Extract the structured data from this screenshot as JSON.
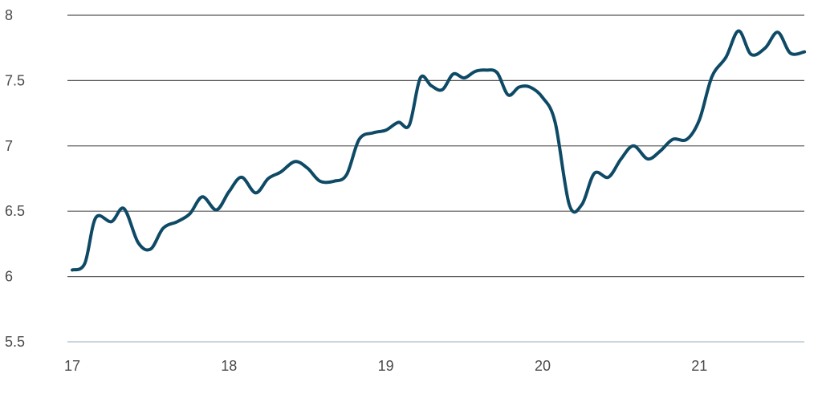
{
  "chart_data": {
    "type": "line",
    "title": "",
    "xlabel": "",
    "ylabel": "",
    "xlim": [
      17,
      21.7
    ],
    "ylim": [
      5.5,
      8
    ],
    "x_ticks": [
      17,
      18,
      19,
      20,
      21
    ],
    "x_tick_labels": [
      "17",
      "18",
      "19",
      "20",
      "21"
    ],
    "y_ticks": [
      5.5,
      6,
      6.5,
      7,
      7.5,
      8
    ],
    "y_tick_labels": [
      "5.5",
      "6",
      "6.5",
      "7",
      "7.5",
      "8"
    ],
    "grid": "horizontal",
    "legend": "none",
    "colors": {
      "series": "#0e4a66",
      "grid": "#555555",
      "axis": "#b8c9d2",
      "text": "#4a4a4a"
    },
    "series": [
      {
        "x": [
          17.0,
          17.08,
          17.15,
          17.25,
          17.33,
          17.42,
          17.5,
          17.58,
          17.67,
          17.75,
          17.83,
          17.92,
          18.0,
          18.08,
          18.17,
          18.25,
          18.33,
          18.42,
          18.5,
          18.58,
          18.67,
          18.75,
          18.83,
          18.92,
          19.0,
          19.08,
          19.15,
          19.22,
          19.29,
          19.36,
          19.43,
          19.5,
          19.57,
          19.64,
          19.71,
          19.78,
          19.85,
          19.92,
          20.0,
          20.08,
          20.17,
          20.25,
          20.33,
          20.42,
          20.5,
          20.58,
          20.67,
          20.75,
          20.83,
          20.92,
          21.0,
          21.08,
          21.17,
          21.25,
          21.33,
          21.42,
          21.5,
          21.58,
          21.67
        ],
        "values": [
          6.05,
          6.1,
          6.45,
          6.42,
          6.52,
          6.26,
          6.21,
          6.37,
          6.42,
          6.48,
          6.61,
          6.51,
          6.65,
          6.76,
          6.64,
          6.75,
          6.8,
          6.88,
          6.83,
          6.73,
          6.73,
          6.78,
          7.05,
          7.1,
          7.12,
          7.18,
          7.16,
          7.52,
          7.46,
          7.43,
          7.55,
          7.52,
          7.57,
          7.58,
          7.56,
          7.39,
          7.45,
          7.45,
          7.37,
          7.18,
          6.55,
          6.55,
          6.79,
          6.76,
          6.9,
          7.0,
          6.9,
          6.96,
          7.05,
          7.05,
          7.2,
          7.53,
          7.68,
          7.88,
          7.7,
          7.75,
          7.87,
          7.71,
          7.72
        ]
      }
    ]
  }
}
